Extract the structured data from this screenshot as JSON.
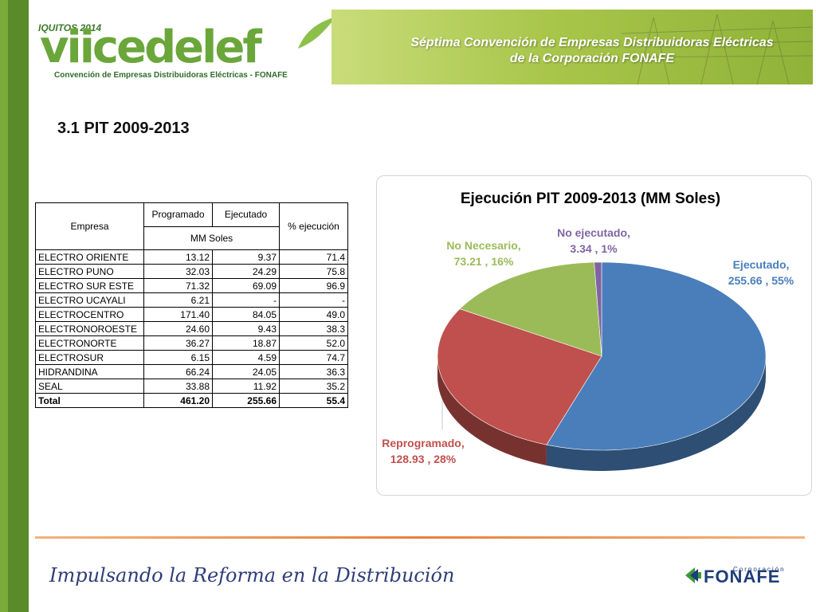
{
  "header": {
    "logo_year": "IQUITOS 2014",
    "logo_word": "viicedelef",
    "logo_subtitle": "Convención de Empresas Distribuidoras Eléctricas - FONAFE",
    "banner_line1": "Séptima Convención de Empresas Distribuidoras Eléctricas",
    "banner_line2": "de la Corporación FONAFE"
  },
  "slide_title": "3.1 PIT 2009-2013",
  "table": {
    "header_empresa": "Empresa",
    "header_programado": "Programado",
    "header_ejecutado": "Ejecutado",
    "header_units": "MM Soles",
    "header_pct": "% ejecución",
    "rows": [
      {
        "empresa": "ELECTRO ORIENTE",
        "programado": "13.12",
        "ejecutado": "9.37",
        "pct": "71.4"
      },
      {
        "empresa": "ELECTRO PUNO",
        "programado": "32.03",
        "ejecutado": "24.29",
        "pct": "75.8"
      },
      {
        "empresa": "ELECTRO SUR ESTE",
        "programado": "71.32",
        "ejecutado": "69.09",
        "pct": "96.9"
      },
      {
        "empresa": "ELECTRO UCAYALI",
        "programado": "6.21",
        "ejecutado": "-",
        "pct": "-"
      },
      {
        "empresa": "ELECTROCENTRO",
        "programado": "171.40",
        "ejecutado": "84.05",
        "pct": "49.0"
      },
      {
        "empresa": "ELECTRONOROESTE",
        "programado": "24.60",
        "ejecutado": "9.43",
        "pct": "38.3"
      },
      {
        "empresa": "ELECTRONORTE",
        "programado": "36.27",
        "ejecutado": "18.87",
        "pct": "52.0"
      },
      {
        "empresa": "ELECTROSUR",
        "programado": "6.15",
        "ejecutado": "4.59",
        "pct": "74.7"
      },
      {
        "empresa": "HIDRANDINA",
        "programado": "66.24",
        "ejecutado": "24.05",
        "pct": "36.3"
      },
      {
        "empresa": "SEAL",
        "programado": "33.88",
        "ejecutado": "11.92",
        "pct": "35.2"
      }
    ],
    "total": {
      "empresa": "Total",
      "programado": "461.20",
      "ejecutado": "255.66",
      "pct": "55.4"
    }
  },
  "chart_data": {
    "type": "pie",
    "title": "Ejecución PIT 2009-2013 (MM Soles)",
    "style": "3d",
    "slices": [
      {
        "name": "Ejecutado",
        "value": 255.66,
        "percent": "55%",
        "color": "#4a7ebb",
        "label_line1": "Ejecutado,",
        "label_line2": "255.66 , 55%"
      },
      {
        "name": "Reprogramado",
        "value": 128.93,
        "percent": "28%",
        "color": "#c0504d",
        "label_line1": "Reprogramado,",
        "label_line2": "128.93 , 28%"
      },
      {
        "name": "No Necesario",
        "value": 73.21,
        "percent": "16%",
        "color": "#9bbb59",
        "label_line1": "No Necesario,",
        "label_line2": "73.21 , 16%"
      },
      {
        "name": "No ejecutado",
        "value": 3.34,
        "percent": "1%",
        "color": "#8064a2",
        "label_line1": "No ejecutado,",
        "label_line2": "3.34 , 1%"
      }
    ]
  },
  "footer": {
    "slogan": "Impulsando la Reforma en la Distribución",
    "brand_small": "Corporación",
    "brand_word": "FONAFE"
  },
  "colors": {
    "left_bar": "#5a8a2a",
    "footer_line": "#e8803a",
    "footer_text": "#2e3d7a"
  }
}
